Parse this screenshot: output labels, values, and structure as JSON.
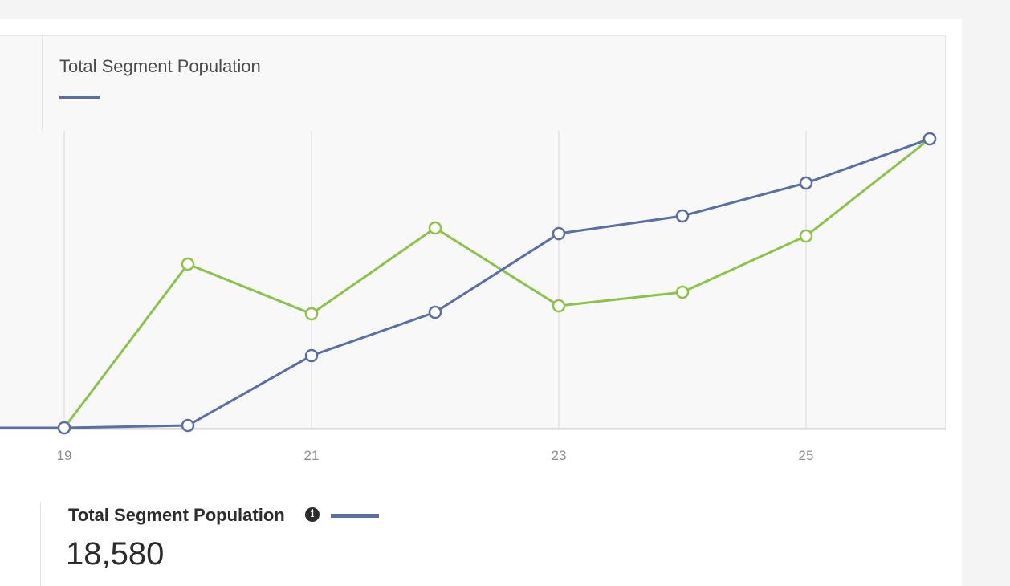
{
  "chart_data": {
    "type": "line",
    "x": [
      18,
      19,
      20,
      21,
      22,
      23,
      24,
      25,
      26
    ],
    "xticks": [
      "19",
      "21",
      "23",
      "25"
    ],
    "series": [
      {
        "name": "Total Segment Population",
        "color": "#5a6ea8",
        "values": [
          0,
          0,
          155,
          4645,
          7432,
          12490,
          13626,
          15742,
          18580
        ]
      },
      {
        "color": "#8bc34a",
        "values": [
          0,
          0,
          10529,
          7329,
          12851,
          7845,
          8723,
          12335,
          18580
        ]
      }
    ],
    "grid": "vertical",
    "legend": "top-left"
  },
  "legend": {
    "title": "Total Segment Population"
  },
  "summary": {
    "title": "Total Segment Population",
    "info_icon": "info-icon",
    "value": "18,580"
  }
}
